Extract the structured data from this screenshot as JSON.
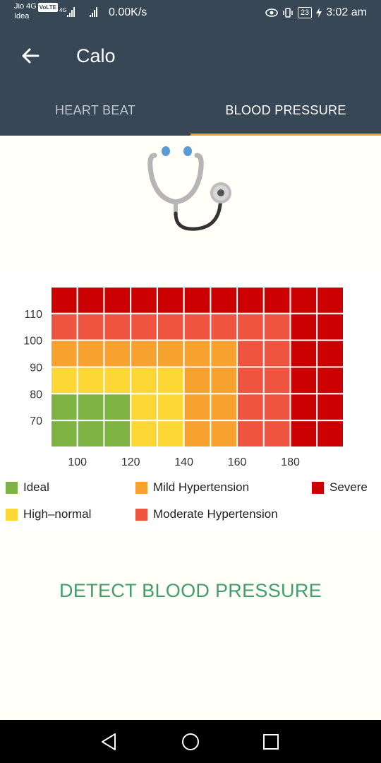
{
  "status_bar": {
    "carrier1": "Jio 4G",
    "volte": "VoLTE",
    "carrier2": "Idea",
    "network_type": "4G",
    "speed": "0.00K/s",
    "battery": "23",
    "time": "3:02 am"
  },
  "app_bar": {
    "title": "Calo",
    "tabs": [
      {
        "label": "HEART BEAT",
        "active": false
      },
      {
        "label": "BLOOD PRESSURE",
        "active": true
      }
    ]
  },
  "chart_data": {
    "type": "heatmap",
    "x_ticks": [
      100,
      120,
      140,
      160,
      180
    ],
    "y_ticks": [
      70,
      80,
      90,
      100,
      110
    ],
    "x_range": [
      90,
      200
    ],
    "y_range": [
      60,
      120
    ],
    "grid_cols": 11,
    "grid_rows": 6,
    "rows_top_to_bottom": [
      [
        "severe",
        "severe",
        "severe",
        "severe",
        "severe",
        "severe",
        "severe",
        "severe",
        "severe",
        "severe",
        "severe"
      ],
      [
        "moderate",
        "moderate",
        "moderate",
        "moderate",
        "moderate",
        "moderate",
        "moderate",
        "moderate",
        "moderate",
        "severe",
        "severe"
      ],
      [
        "mild",
        "mild",
        "mild",
        "mild",
        "mild",
        "mild",
        "mild",
        "moderate",
        "moderate",
        "severe",
        "severe"
      ],
      [
        "high_normal",
        "high_normal",
        "high_normal",
        "high_normal",
        "high_normal",
        "mild",
        "mild",
        "moderate",
        "moderate",
        "severe",
        "severe"
      ],
      [
        "ideal",
        "ideal",
        "ideal",
        "high_normal",
        "high_normal",
        "mild",
        "mild",
        "moderate",
        "moderate",
        "severe",
        "severe"
      ],
      [
        "ideal",
        "ideal",
        "ideal",
        "high_normal",
        "high_normal",
        "mild",
        "mild",
        "moderate",
        "moderate",
        "severe",
        "severe"
      ]
    ],
    "categories": {
      "ideal": {
        "label": "Ideal",
        "color": "#7cb342"
      },
      "high_normal": {
        "label": "High-normal",
        "color": "#fdd835"
      },
      "mild": {
        "label": "Mild Hypertension",
        "color": "#f7a12f"
      },
      "moderate": {
        "label": "Moderate Hypertension",
        "color": "#ee5440"
      },
      "severe": {
        "label": "Severe",
        "color": "#cc0000"
      }
    }
  },
  "legend": [
    {
      "label": "Ideal",
      "color": "#7cb342"
    },
    {
      "label": "Mild Hypertension",
      "color": "#f7a12f"
    },
    {
      "label": "Severe",
      "color": "#cc0000"
    },
    {
      "label": "High–normal",
      "color": "#fdd835"
    },
    {
      "label": "Moderate Hypertension",
      "color": "#ee5440"
    }
  ],
  "detect_button": {
    "label": "DETECT BLOOD PRESSURE",
    "color": "#3f9e6a"
  },
  "icons": {
    "back": "back-arrow-icon",
    "stethoscope": "stethoscope-icon",
    "nav_back": "nav-back-icon",
    "nav_home": "nav-home-icon",
    "nav_recents": "nav-recents-icon"
  }
}
